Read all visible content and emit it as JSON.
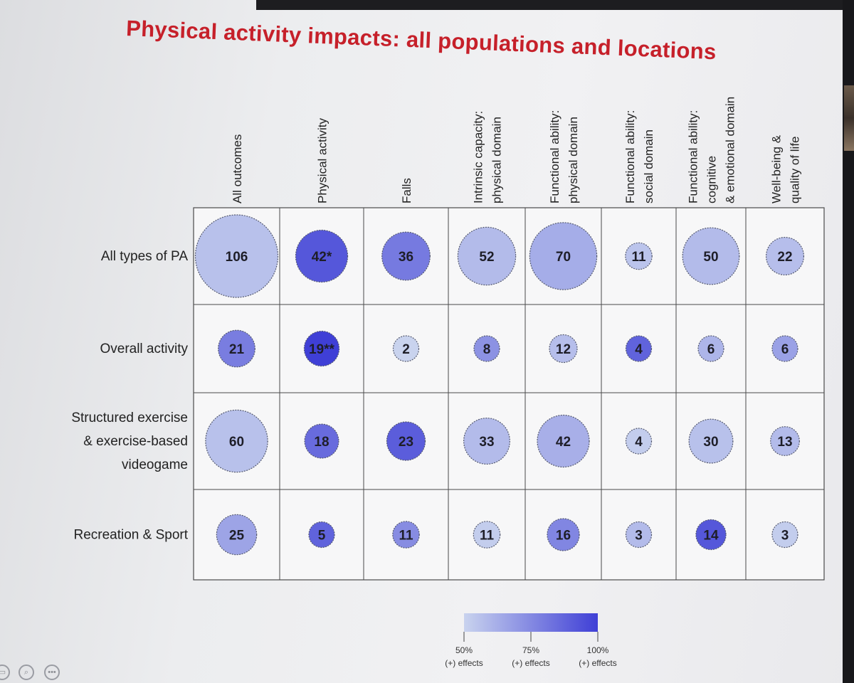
{
  "slide": {
    "title": "Physical activity impacts: all populations and locations"
  },
  "chart_data": {
    "type": "bubble-matrix",
    "columns": [
      [
        "All outcomes"
      ],
      [
        "Physical activity"
      ],
      [
        "Falls"
      ],
      [
        "Intrinsic capacity:",
        "physical domain"
      ],
      [
        "Functional ability:",
        "physical domain"
      ],
      [
        "Functional ability:",
        "social domain"
      ],
      [
        "Functional ability:",
        "cognitive",
        "& emotional domain"
      ],
      [
        "Well-being &",
        "quality of life"
      ]
    ],
    "rows": [
      [
        "All types of PA"
      ],
      [
        "Overall activity"
      ],
      [
        "Structured exercise",
        "& exercise-based",
        "videogame"
      ],
      [
        "Recreation & Sport"
      ]
    ],
    "values": [
      [
        106,
        42,
        36,
        52,
        70,
        11,
        50,
        22
      ],
      [
        21,
        19,
        2,
        8,
        12,
        4,
        6,
        6
      ],
      [
        60,
        18,
        23,
        33,
        42,
        4,
        30,
        13
      ],
      [
        25,
        5,
        11,
        11,
        16,
        3,
        14,
        3
      ]
    ],
    "cell_labels": [
      [
        "106",
        "42*",
        "36",
        "52",
        "70",
        "11",
        "50",
        "22"
      ],
      [
        "21",
        "19**",
        "2",
        "8",
        "12",
        "4",
        "6",
        "6"
      ],
      [
        "60",
        "18",
        "23",
        "33",
        "42",
        "4",
        "30",
        "13"
      ],
      [
        "25",
        "5",
        "11",
        "11",
        "16",
        "3",
        "14",
        "3"
      ]
    ],
    "positive_effect_pct": [
      [
        56,
        92,
        80,
        58,
        63,
        55,
        58,
        57
      ],
      [
        79,
        100,
        50,
        72,
        57,
        88,
        60,
        67
      ],
      [
        56,
        85,
        90,
        58,
        62,
        52,
        56,
        58
      ],
      [
        66,
        88,
        74,
        52,
        76,
        58,
        92,
        52
      ]
    ],
    "color_scale": {
      "low_color": "#c9d3ee",
      "high_color": "#3f3fd6",
      "low_pct": 50,
      "high_pct": 100,
      "ticks": [
        {
          "pct": 50,
          "label": "50%",
          "sub": "(+) effects"
        },
        {
          "pct": 75,
          "label": "75%",
          "sub": "(+) effects"
        },
        {
          "pct": 100,
          "label": "100%",
          "sub": "(+) effects"
        }
      ]
    }
  }
}
